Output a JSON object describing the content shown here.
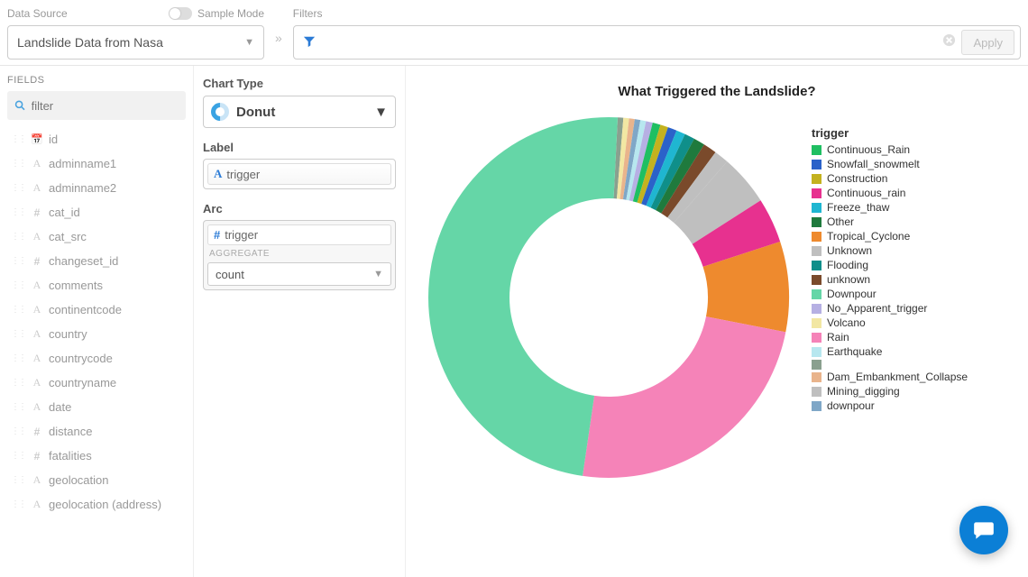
{
  "topbar": {
    "data_source_label": "Data Source",
    "data_source_value": "Landslide Data from Nasa",
    "sample_mode_label": "Sample Mode",
    "filters_label": "Filters",
    "apply_label": "Apply"
  },
  "fields": {
    "title": "FIELDS",
    "search_placeholder": "filter",
    "items": [
      {
        "type": "date",
        "name": "id"
      },
      {
        "type": "text",
        "name": "adminname1"
      },
      {
        "type": "text",
        "name": "adminname2"
      },
      {
        "type": "num",
        "name": "cat_id"
      },
      {
        "type": "text",
        "name": "cat_src"
      },
      {
        "type": "num",
        "name": "changeset_id"
      },
      {
        "type": "text",
        "name": "comments"
      },
      {
        "type": "text",
        "name": "continentcode"
      },
      {
        "type": "text",
        "name": "country"
      },
      {
        "type": "text",
        "name": "countrycode"
      },
      {
        "type": "text",
        "name": "countryname"
      },
      {
        "type": "text",
        "name": "date"
      },
      {
        "type": "num",
        "name": "distance"
      },
      {
        "type": "num",
        "name": "fatalities"
      },
      {
        "type": "text",
        "name": "geolocation"
      },
      {
        "type": "text",
        "name": "geolocation (address)"
      }
    ]
  },
  "config": {
    "chart_type_label": "Chart Type",
    "chart_type_value": "Donut",
    "label_label": "Label",
    "label_field": "trigger",
    "arc_label": "Arc",
    "arc_field": "trigger",
    "aggregate_label": "AGGREGATE",
    "aggregate_value": "count"
  },
  "chart": {
    "title": "What Triggered the Landslide?",
    "legend_title": "trigger",
    "inner_radius_ratio": 0.55,
    "background": "#ffffff",
    "slices": [
      {
        "label": "Downpour",
        "value": 48,
        "color": "#65d6a7"
      },
      {
        "label": "Rain",
        "value": 24,
        "color": "#f583b8"
      },
      {
        "label": "Tropical_Cyclone",
        "value": 8,
        "color": "#ee8a2e"
      },
      {
        "label": "Continuous_rain",
        "value": 4,
        "color": "#e7318f"
      },
      {
        "label": "Unknown",
        "value": 4.5,
        "color": "#bfbfbf"
      },
      {
        "label": "Mining_digging",
        "value": 1.3,
        "color": "#bfbfbf"
      },
      {
        "label": "unknown",
        "value": 1.2,
        "color": "#7a4a2b"
      },
      {
        "label": "Other",
        "value": 1.0,
        "color": "#1f7a3d"
      },
      {
        "label": "Flooding",
        "value": 0.9,
        "color": "#0f8f8a"
      },
      {
        "label": "Freeze_thaw",
        "value": 0.8,
        "color": "#1fb6d1"
      },
      {
        "label": "Snowfall_snowmelt",
        "value": 0.8,
        "color": "#2b62c9"
      },
      {
        "label": "Construction",
        "value": 0.7,
        "color": "#c4b21f"
      },
      {
        "label": "Continuous_Rain",
        "value": 0.7,
        "color": "#1fbf62"
      },
      {
        "label": "No_Apparent_trigger",
        "value": 0.6,
        "color": "#b6b0e3"
      },
      {
        "label": "Earthquake",
        "value": 0.5,
        "color": "#b7e7ef"
      },
      {
        "label": "downpour",
        "value": 0.5,
        "color": "#7fa7c7"
      },
      {
        "label": "Dam_Embankment_Collapse",
        "value": 0.5,
        "color": "#e9b48c"
      },
      {
        "label": "Volcano",
        "value": 0.5,
        "color": "#f2e7a3"
      },
      {
        "label": "",
        "value": 0.5,
        "color": "#8aa08f"
      }
    ],
    "legend_order": [
      "Continuous_Rain",
      "Snowfall_snowmelt",
      "Construction",
      "Continuous_rain",
      "Freeze_thaw",
      "Other",
      "Tropical_Cyclone",
      "Unknown",
      "Flooding",
      "unknown",
      "Downpour",
      "No_Apparent_trigger",
      "Volcano",
      "Rain",
      "Earthquake",
      "",
      "Dam_Embankment_Collapse",
      "Mining_digging",
      "downpour"
    ]
  }
}
